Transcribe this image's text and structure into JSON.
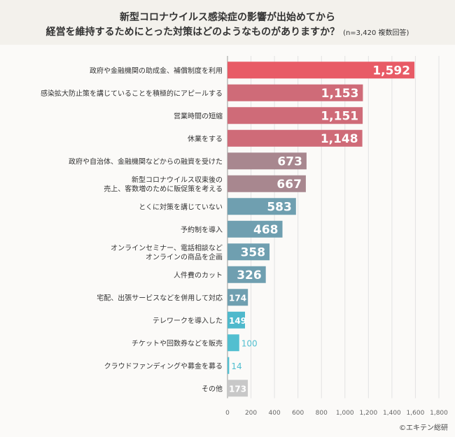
{
  "chart_data": {
    "type": "bar",
    "orientation": "horizontal",
    "title": "新型コロナウイルス感染症の影響が出始めてから",
    "title_line2": "経営を維持するためにとった対策はどのようなものがありますか？",
    "subtitle": "(n=3,420 複数回答)",
    "categories": [
      "政府や金融機関の助成金、補償制度を利用",
      "感染拡大防止策を講じていることを積極的にアピールする",
      "営業時間の短縮",
      "休業をする",
      "政府や自治体、金融機関などからの融資を受けた",
      "新型コロナウイルス収束後の\n売上、客数増のために販促策を考える",
      "とくに対策を講じていない",
      "予約制を導入",
      "オンラインセミナー、電話相談など\nオンラインの商品を企画",
      "人件費のカット",
      "宅配、出張サービスなどを併用して対応",
      "テレワークを導入した",
      "チケットや回数券などを販売",
      "クラウドファンディングや募金を募る",
      "その他"
    ],
    "values": [
      1592,
      1153,
      1151,
      1148,
      673,
      667,
      583,
      468,
      358,
      326,
      174,
      149,
      100,
      14,
      173
    ],
    "value_labels": [
      "1,592",
      "1,153",
      "1,151",
      "1,148",
      "673",
      "667",
      "583",
      "468",
      "358",
      "326",
      "174",
      "149",
      "100",
      "14",
      "173"
    ],
    "colors": [
      "#e85b66",
      "#cf6b78",
      "#cf6b78",
      "#cf6b78",
      "#a8878f",
      "#a8878f",
      "#6f9fb0",
      "#6f9fb0",
      "#6f9fb0",
      "#6f9fb0",
      "#6f9fb0",
      "#4fb9cc",
      "#52bfd0",
      "#52bfd0",
      "#c8c8c8"
    ],
    "xlim": [
      0,
      1800
    ],
    "xticks": [
      0,
      200,
      400,
      600,
      800,
      1000,
      1200,
      1400,
      1600,
      1800
    ],
    "xtick_labels": [
      "0",
      "200",
      "400",
      "600",
      "800",
      "1,000",
      "1,200",
      "1,400",
      "1,600",
      "1,800"
    ],
    "grid": true,
    "credit": "©エキテン総研"
  }
}
